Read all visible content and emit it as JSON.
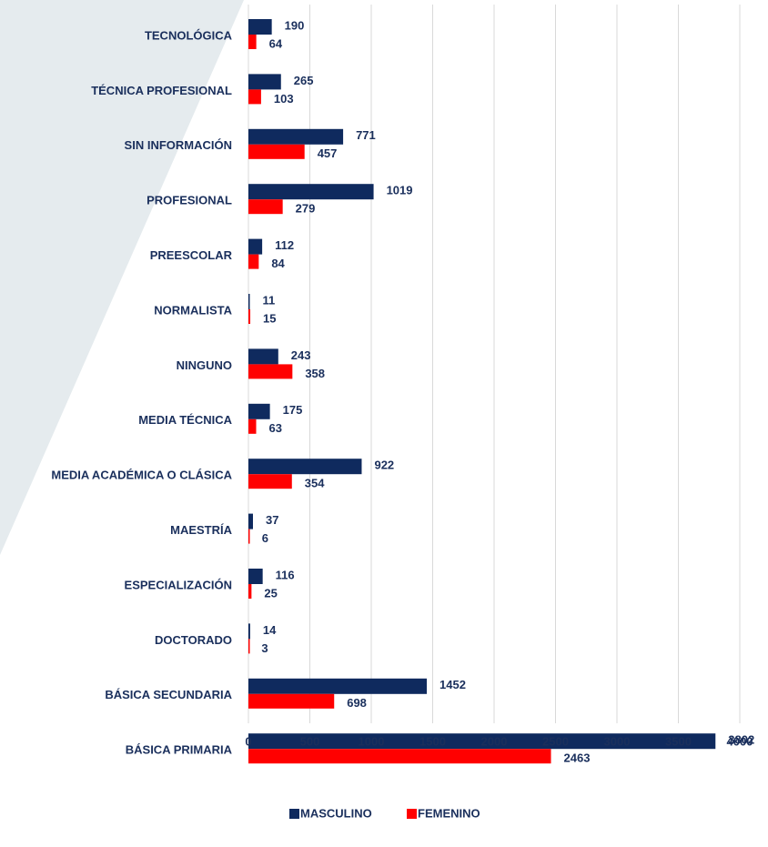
{
  "chart_data": {
    "type": "bar",
    "orientation": "horizontal",
    "categories": [
      "TECNOLÓGICA",
      "TÉCNICA PROFESIONAL",
      "SIN INFORMACIÓN",
      "PROFESIONAL",
      "PREESCOLAR",
      "NORMALISTA",
      "NINGUNO",
      "MEDIA TÉCNICA",
      "MEDIA ACADÉMICA O CLÁSICA",
      "MAESTRÍA",
      "ESPECIALIZACIÓN",
      "DOCTORADO",
      "BÁSICA SECUNDARIA",
      "BÁSICA PRIMARIA"
    ],
    "series": [
      {
        "name": "MASCULINO",
        "color": "#0f2a5e",
        "values": [
          190,
          265,
          771,
          1019,
          112,
          11,
          243,
          175,
          922,
          37,
          116,
          14,
          1452,
          3802
        ]
      },
      {
        "name": "FEMENINO",
        "color": "#ff0000",
        "values": [
          64,
          103,
          457,
          279,
          84,
          15,
          358,
          63,
          354,
          6,
          25,
          3,
          698,
          2463
        ]
      }
    ],
    "xlim": [
      0,
      4000
    ],
    "xticks": [
      0,
      500,
      1000,
      1500,
      2000,
      2500,
      3000,
      3500,
      4000
    ],
    "grid": true,
    "legend": "bottom"
  }
}
